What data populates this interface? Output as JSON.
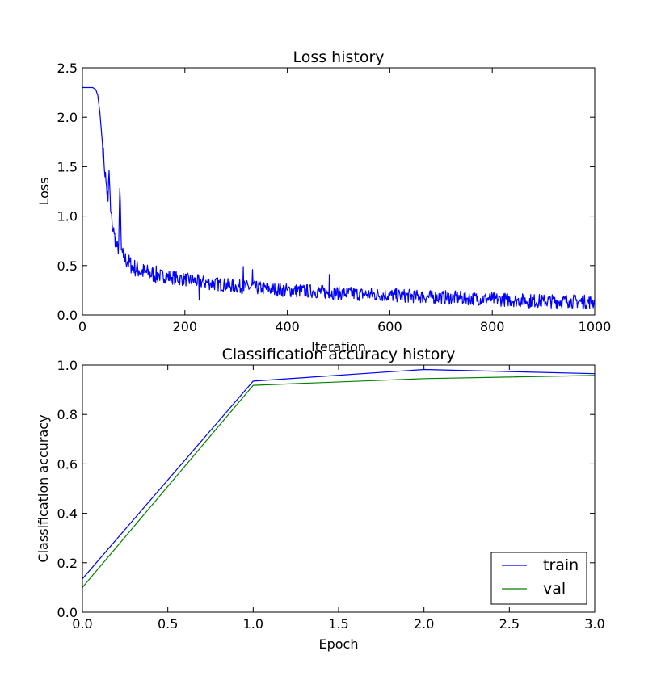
{
  "chart_data": [
    {
      "type": "line",
      "title": "Loss history",
      "xlabel": "Iteration",
      "ylabel": "Loss",
      "xlim": [
        0,
        1000
      ],
      "ylim": [
        0,
        2.5
      ],
      "x_ticks": [
        "0",
        "200",
        "400",
        "600",
        "800",
        "1000"
      ],
      "y_ticks": [
        "0.0",
        "0.5",
        "1.0",
        "1.5",
        "2.0",
        "2.5"
      ],
      "grid": false,
      "noise_seed": 7,
      "series": [
        {
          "color": "#0000ff",
          "anchors": [
            [
              0,
              2.3
            ],
            [
              10,
              2.3
            ],
            [
              20,
              2.3
            ],
            [
              26,
              2.28
            ],
            [
              30,
              2.22
            ],
            [
              34,
              2.05
            ],
            [
              38,
              1.8
            ],
            [
              42,
              1.55
            ],
            [
              46,
              1.35
            ],
            [
              50,
              1.15
            ],
            [
              52,
              1.46
            ],
            [
              55,
              1.05
            ],
            [
              58,
              0.92
            ],
            [
              62,
              0.82
            ],
            [
              66,
              0.72
            ],
            [
              70,
              0.62
            ],
            [
              73,
              1.28
            ],
            [
              76,
              0.66
            ],
            [
              80,
              0.58
            ],
            [
              88,
              0.54
            ],
            [
              96,
              0.5
            ],
            [
              110,
              0.45
            ],
            [
              130,
              0.42
            ],
            [
              150,
              0.4
            ],
            [
              175,
              0.38
            ],
            [
              200,
              0.36
            ],
            [
              250,
              0.32
            ],
            [
              300,
              0.29
            ],
            [
              350,
              0.27
            ],
            [
              400,
              0.25
            ],
            [
              450,
              0.24
            ],
            [
              500,
              0.22
            ],
            [
              550,
              0.21
            ],
            [
              600,
              0.2
            ],
            [
              650,
              0.19
            ],
            [
              700,
              0.18
            ],
            [
              750,
              0.17
            ],
            [
              800,
              0.16
            ],
            [
              850,
              0.15
            ],
            [
              900,
              0.14
            ],
            [
              950,
              0.14
            ],
            [
              1000,
              0.13
            ]
          ],
          "noise_start": 40,
          "noise_amplitude": 0.07,
          "spikes": [
            [
              314,
              0.49
            ],
            [
              228,
              0.15
            ],
            [
              332,
              0.46
            ],
            [
              482,
              0.41
            ],
            [
              872,
              0.07
            ]
          ]
        }
      ]
    },
    {
      "type": "line",
      "title": "Classification accuracy history",
      "xlabel": "Epoch",
      "ylabel": "Classification accuracy",
      "xlim": [
        0,
        3.0
      ],
      "ylim": [
        0,
        1.0
      ],
      "x_ticks": [
        "0.0",
        "0.5",
        "1.0",
        "1.5",
        "2.0",
        "2.5",
        "3.0"
      ],
      "y_ticks": [
        "0.0",
        "0.2",
        "0.4",
        "0.6",
        "0.8",
        "1.0"
      ],
      "grid": false,
      "legend_position": "lower-right",
      "series": [
        {
          "name": "train",
          "color": "#0000ff",
          "x": [
            0,
            1,
            2,
            3
          ],
          "y": [
            0.135,
            0.935,
            0.982,
            0.965
          ]
        },
        {
          "name": "val",
          "color": "#008000",
          "x": [
            0,
            1,
            2,
            3
          ],
          "y": [
            0.1,
            0.918,
            0.945,
            0.958
          ]
        }
      ]
    }
  ]
}
